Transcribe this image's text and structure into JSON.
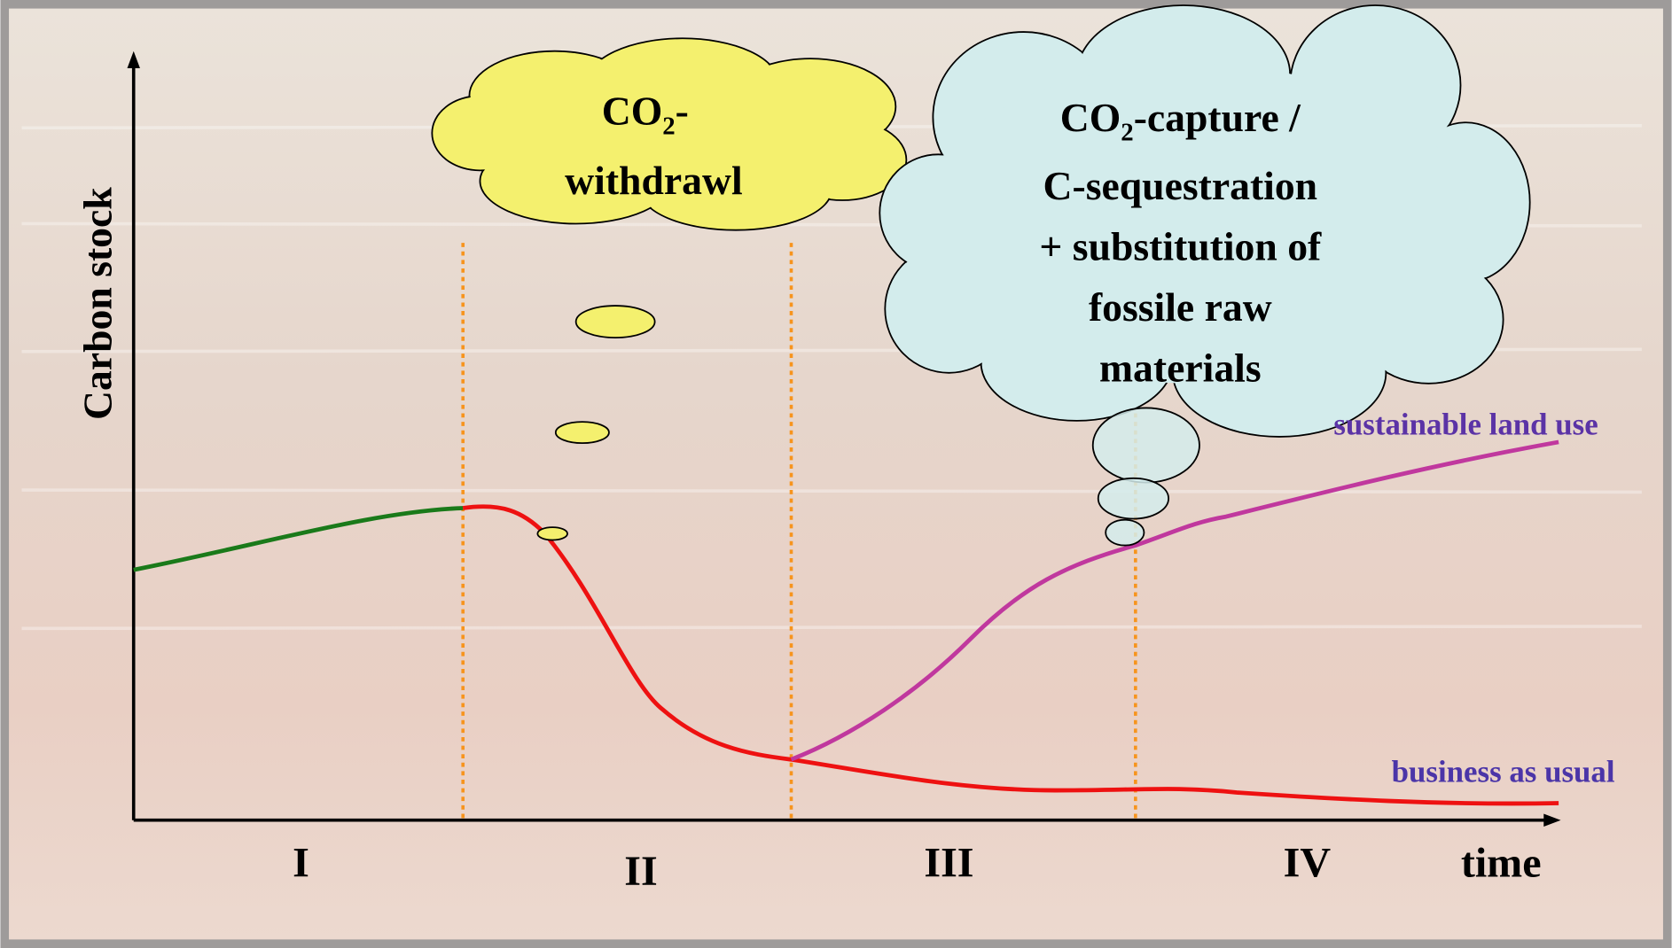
{
  "y_axis_label": "Carbon stock",
  "x_axis_label": "time",
  "phases": [
    "I",
    "II",
    "III",
    "IV"
  ],
  "cloud_withdrawal": {
    "formula": "CO",
    "subscript": "2",
    "suffix": "-",
    "lines": [
      "withdrawl"
    ]
  },
  "cloud_capture": {
    "formula": "CO",
    "subscript": "2",
    "suffix": "-capture /",
    "lines": [
      "C-sequestration",
      "+ substitution of",
      "fossile raw",
      "materials"
    ]
  },
  "line_labels": {
    "sustainable": "sustainable land use",
    "business": "business as usual"
  }
}
